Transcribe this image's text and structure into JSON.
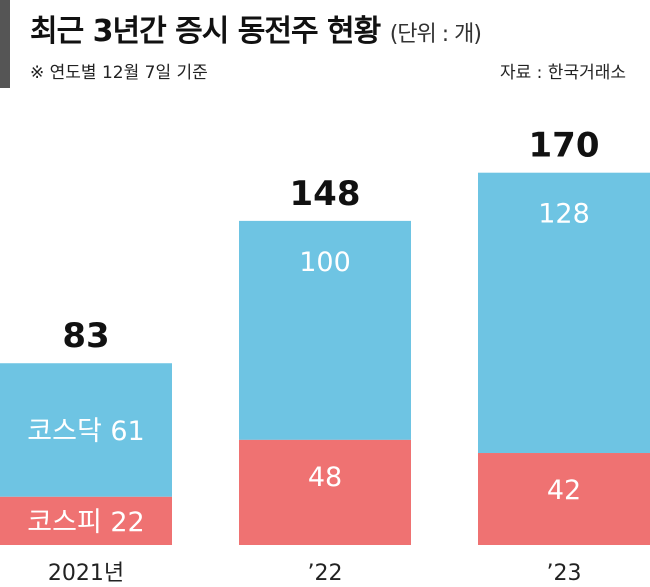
{
  "header": {
    "title": "최근 3년간 증시 동전주 현황",
    "unit": "(단위 : 개)",
    "note": "※ 연도별 12월 7일 기준",
    "source": "자료 : 한국거래소"
  },
  "colors": {
    "kosdaq": "#6ec4e3",
    "kospi": "#ef7272",
    "accent": "#555555"
  },
  "chart_data": {
    "type": "bar",
    "stacked": true,
    "categories": [
      "2021년",
      "’22",
      "’23"
    ],
    "series": [
      {
        "name": "코스피",
        "values": [
          22,
          48,
          42
        ]
      },
      {
        "name": "코스닥",
        "values": [
          61,
          100,
          128
        ]
      }
    ],
    "totals": [
      83,
      148,
      170
    ],
    "ylim": [
      0,
      170
    ],
    "grid": false,
    "legend": "inline labels on first bar"
  }
}
